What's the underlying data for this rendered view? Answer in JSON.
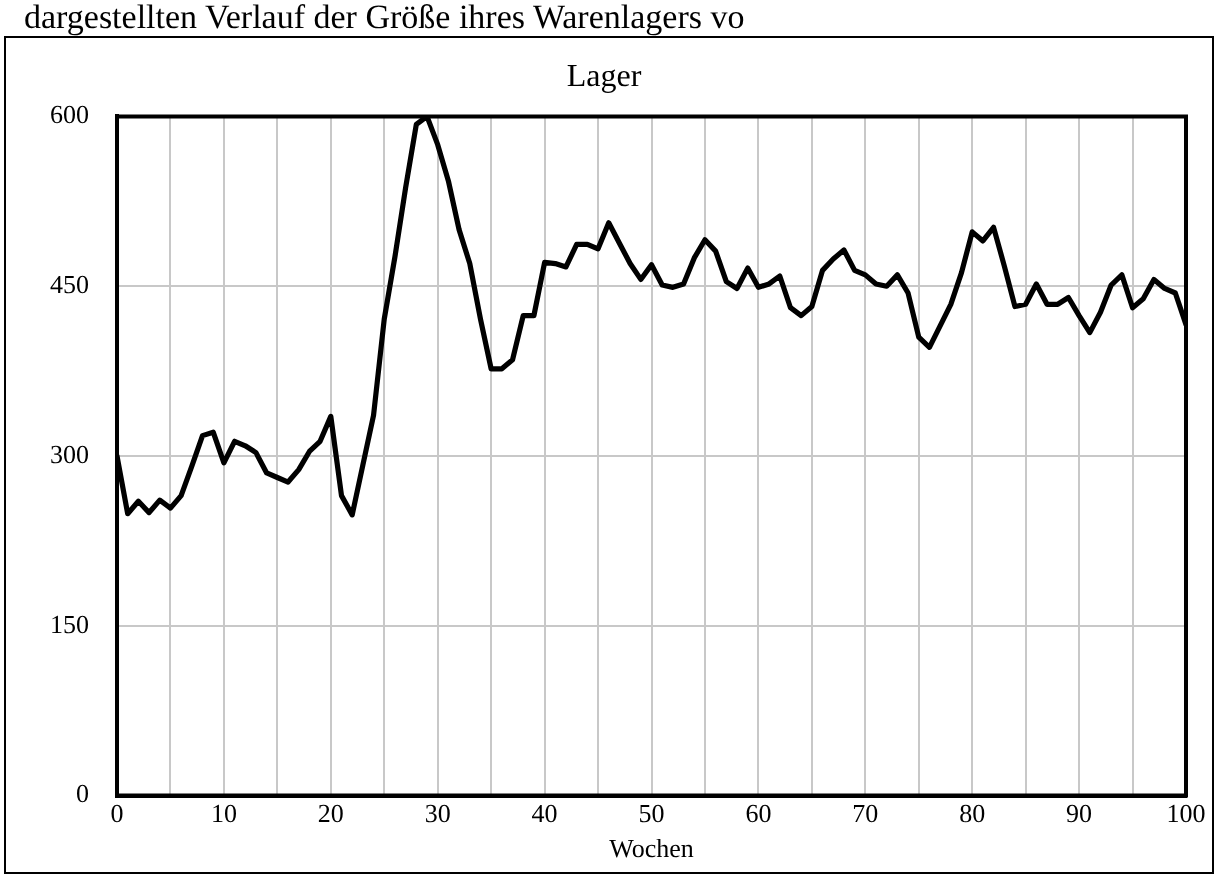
{
  "chart_data": {
    "type": "line",
    "title": "Lager",
    "xlabel": "Wochen",
    "annotations": [
      "dargestellten Verlauf der Größe ihres Warenlagers vo"
    ],
    "x": [
      0,
      1,
      2,
      3,
      4,
      5,
      6,
      7,
      8,
      9,
      10,
      11,
      12,
      13,
      14,
      15,
      16,
      17,
      18,
      19,
      20,
      21,
      22,
      23,
      24,
      25,
      26,
      27,
      28,
      29,
      30,
      31,
      32,
      33,
      34,
      35,
      36,
      37,
      38,
      39,
      40,
      41,
      42,
      43,
      44,
      45,
      46,
      47,
      48,
      49,
      50,
      51,
      52,
      53,
      54,
      55,
      56,
      57,
      58,
      59,
      60,
      61,
      62,
      63,
      64,
      65,
      66,
      67,
      68,
      69,
      70,
      71,
      72,
      73,
      74,
      75,
      76,
      77,
      78,
      79,
      80,
      81,
      82,
      83,
      84,
      85,
      86,
      87,
      88,
      89,
      90,
      91,
      92,
      93,
      94,
      95,
      96,
      97,
      98,
      99,
      100
    ],
    "series": [
      {
        "color": "#000000",
        "values": [
          300,
          249,
          260,
          250,
          261,
          254,
          265,
          291,
          318,
          321,
          294,
          313,
          309,
          303,
          285,
          281,
          277,
          288,
          304,
          313,
          335,
          265,
          248,
          292,
          336,
          421,
          476,
          537,
          593,
          600,
          575,
          543,
          500,
          470,
          421,
          377,
          377,
          385,
          424,
          424,
          471,
          470,
          467,
          487,
          487,
          483,
          506,
          488,
          470,
          456,
          469,
          451,
          449,
          452,
          475,
          491,
          481,
          454,
          448,
          466,
          449,
          452,
          459,
          431,
          424,
          432,
          464,
          474,
          482,
          464,
          460,
          452,
          450,
          460,
          444,
          405,
          396,
          415,
          434,
          462,
          498,
          490,
          502,
          468,
          432,
          434,
          452,
          434,
          434,
          440,
          424,
          409,
          427,
          451,
          460,
          431,
          439,
          456,
          448,
          444,
          416
        ]
      }
    ],
    "xlim": [
      0,
      100
    ],
    "xticks": [
      0,
      {
        "value": 5,
        "label": null
      },
      10,
      {
        "value": 15,
        "label": null
      },
      20,
      {
        "value": 25,
        "label": null
      },
      30,
      {
        "value": 35,
        "label": null
      },
      40,
      {
        "value": 45,
        "label": null
      },
      50,
      {
        "value": 55,
        "label": null
      },
      60,
      {
        "value": 65,
        "label": null
      },
      70,
      {
        "value": 75,
        "label": null
      },
      80,
      {
        "value": 85,
        "label": null
      },
      90,
      {
        "value": 95,
        "label": null
      },
      100
    ],
    "ylim": [
      0,
      600
    ],
    "yticks": [
      0,
      150,
      300,
      450,
      600
    ],
    "grid": true,
    "legend": false,
    "marker": "none",
    "line_style": "solid"
  }
}
